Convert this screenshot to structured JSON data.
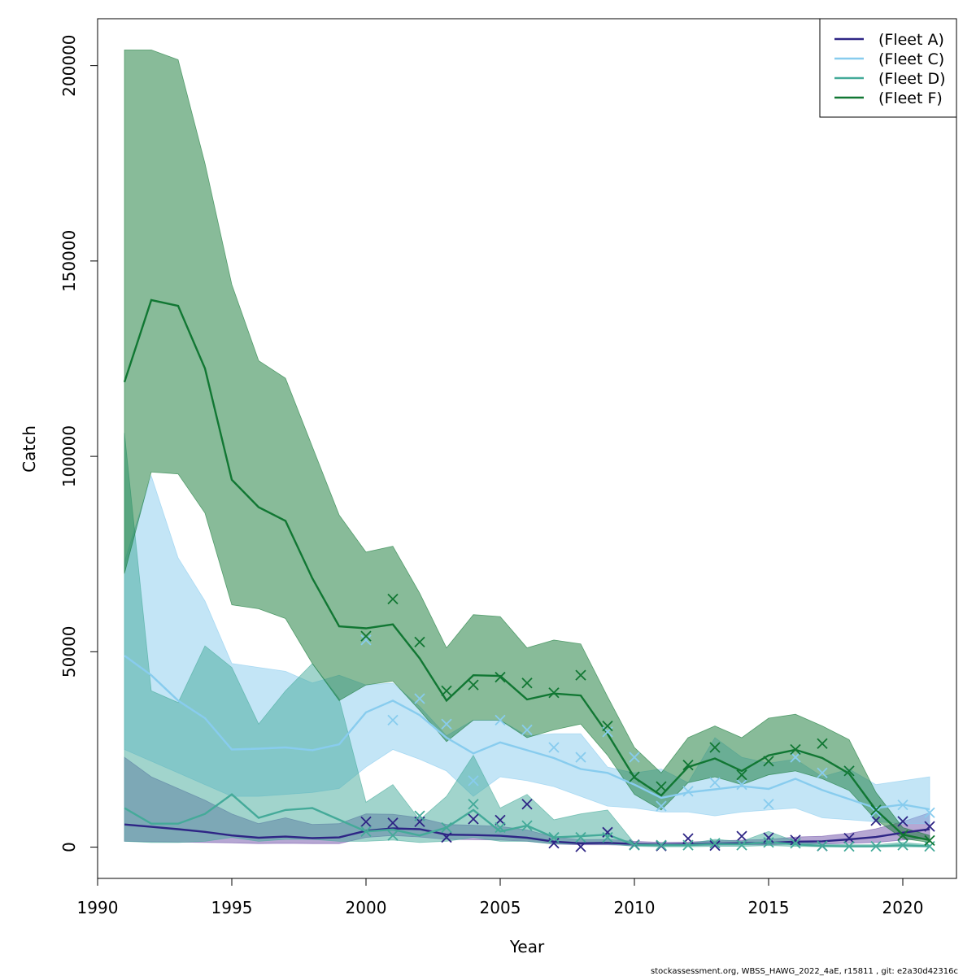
{
  "chart_data": {
    "type": "line",
    "xlabel": "Year",
    "ylabel": "Catch",
    "xlim": [
      1990,
      2022
    ],
    "ylim": [
      -8000,
      212000
    ],
    "x_ticks": [
      1990,
      1995,
      2000,
      2005,
      2010,
      2015,
      2020
    ],
    "y_ticks": [
      0,
      50000,
      100000,
      150000,
      200000
    ],
    "legend_position": "top-right",
    "grid": false,
    "footer": "stockassessment.org, WBSS_HAWG_2022_4aE, r15811 , git: e2a30d42316c",
    "series": [
      {
        "name": "(Fleet A)",
        "color": "#2e2585",
        "band_color": "#6e4fa8",
        "x": [
          1991,
          1992,
          1993,
          1994,
          1995,
          1996,
          1997,
          1998,
          1999,
          2000,
          2001,
          2002,
          2003,
          2004,
          2005,
          2006,
          2007,
          2008,
          2009,
          2010,
          2011,
          2012,
          2013,
          2014,
          2015,
          2016,
          2017,
          2018,
          2019,
          2020,
          2021
        ],
        "fit": [
          5800,
          5200,
          4600,
          3900,
          3000,
          2400,
          2700,
          2300,
          2500,
          4200,
          4800,
          4600,
          3200,
          3100,
          2900,
          2400,
          1400,
          1000,
          1100,
          800,
          600,
          700,
          900,
          1000,
          1100,
          1400,
          1500,
          2000,
          2600,
          3700,
          4600
        ],
        "lower": [
          1500,
          1400,
          1300,
          1200,
          1100,
          900,
          1000,
          900,
          900,
          2500,
          3000,
          2600,
          2000,
          1900,
          1800,
          1500,
          800,
          600,
          600,
          400,
          300,
          400,
          500,
          600,
          600,
          800,
          800,
          1000,
          1200,
          1800,
          2300
        ],
        "upper": [
          23000,
          18000,
          15000,
          12000,
          8500,
          6000,
          7500,
          5800,
          6000,
          8500,
          8400,
          7500,
          5800,
          5600,
          5300,
          4400,
          2600,
          1900,
          2000,
          1500,
          1200,
          1300,
          1600,
          1800,
          2000,
          2600,
          2800,
          3500,
          4700,
          6500,
          8800
        ],
        "obs_x": [
          2000,
          2001,
          2002,
          2003,
          2004,
          2005,
          2006,
          2007,
          2008,
          2009,
          2010,
          2011,
          2012,
          2013,
          2014,
          2015,
          2016,
          2017,
          2018,
          2019,
          2020,
          2021
        ],
        "obs": [
          6500,
          6200,
          6500,
          2500,
          7200,
          6900,
          11000,
          1000,
          100,
          3800,
          600,
          300,
          2200,
          400,
          2800,
          2400,
          1800,
          300,
          2300,
          6800,
          6600,
          5300
        ]
      },
      {
        "name": "(Fleet C)",
        "color": "#88ccee",
        "band_color": "#88ccee",
        "x": [
          1991,
          1992,
          1993,
          1994,
          1995,
          1996,
          1997,
          1998,
          1999,
          2000,
          2001,
          2002,
          2003,
          2004,
          2005,
          2006,
          2007,
          2008,
          2009,
          2010,
          2011,
          2012,
          2013,
          2014,
          2015,
          2016,
          2017,
          2018,
          2019,
          2020,
          2021
        ],
        "fit": [
          49000,
          44000,
          37500,
          33000,
          25000,
          25200,
          25500,
          24800,
          26300,
          34500,
          37500,
          33800,
          28000,
          24000,
          26800,
          24800,
          22800,
          20000,
          19000,
          16000,
          12600,
          14000,
          14800,
          15600,
          14900,
          17500,
          14600,
          12300,
          10000,
          10900,
          9700
        ],
        "lower": [
          25000,
          22000,
          19000,
          16000,
          13000,
          13000,
          13500,
          14000,
          15000,
          20500,
          25000,
          22500,
          19500,
          13000,
          18000,
          17000,
          15500,
          13000,
          10500,
          10000,
          9000,
          9000,
          8000,
          9000,
          9500,
          10000,
          7500,
          7000,
          6500,
          6000,
          6000
        ],
        "upper": [
          73000,
          95000,
          74000,
          63000,
          47000,
          46000,
          45000,
          42000,
          44000,
          41500,
          42000,
          36000,
          28500,
          32500,
          32500,
          28500,
          29000,
          29000,
          20500,
          19000,
          20000,
          16500,
          28000,
          23000,
          21500,
          22500,
          18000,
          20000,
          16000,
          17000,
          18000
        ],
        "obs_x": [
          2000,
          2001,
          2002,
          2003,
          2004,
          2005,
          2006,
          2007,
          2008,
          2009,
          2010,
          2011,
          2012,
          2013,
          2014,
          2015,
          2016,
          2017,
          2018,
          2019,
          2020,
          2021
        ],
        "obs": [
          53000,
          32500,
          38000,
          31500,
          17000,
          32500,
          30000,
          25500,
          23000,
          29500,
          23000,
          10500,
          14300,
          16500,
          16000,
          11000,
          23000,
          19000,
          19500,
          9000,
          10800,
          8800
        ]
      },
      {
        "name": "(Fleet D)",
        "color": "#44aa99",
        "band_color": "#44aa99",
        "x": [
          1991,
          1992,
          1993,
          1994,
          1995,
          1996,
          1997,
          1998,
          1999,
          2000,
          2001,
          2002,
          2003,
          2004,
          2005,
          2006,
          2007,
          2008,
          2009,
          2010,
          2011,
          2012,
          2013,
          2014,
          2015,
          2016,
          2017,
          2018,
          2019,
          2020,
          2021
        ],
        "fit": [
          10000,
          6000,
          6000,
          8500,
          13500,
          7500,
          9500,
          10000,
          7000,
          4000,
          4500,
          3000,
          5000,
          9500,
          4000,
          5500,
          2500,
          2800,
          3200,
          600,
          500,
          500,
          800,
          700,
          1300,
          700,
          300,
          200,
          200,
          500,
          200
        ],
        "lower": [
          1500,
          1200,
          1200,
          1500,
          2500,
          1500,
          2000,
          2000,
          1500,
          1500,
          1800,
          1200,
          1500,
          2500,
          1500,
          1500,
          800,
          800,
          800,
          200,
          100,
          100,
          200,
          200,
          400,
          200,
          100,
          50,
          50,
          100,
          50
        ],
        "upper": [
          106000,
          40000,
          37000,
          51500,
          46000,
          31500,
          40000,
          47000,
          38000,
          11500,
          16000,
          7000,
          13000,
          23500,
          10000,
          13500,
          7000,
          8500,
          9500,
          1000,
          900,
          900,
          2000,
          1500,
          4000,
          1500,
          800,
          600,
          600,
          1200,
          600
        ],
        "obs_x": [
          2000,
          2001,
          2002,
          2003,
          2004,
          2005,
          2006,
          2007,
          2008,
          2009,
          2010,
          2011,
          2012,
          2013,
          2014,
          2015,
          2016,
          2017,
          2018,
          2019,
          2020,
          2021
        ],
        "obs": [
          4000,
          3000,
          8000,
          5000,
          11000,
          5000,
          5500,
          2500,
          2500,
          2500,
          500,
          500,
          500,
          1000,
          500,
          1200,
          1000,
          300,
          200,
          200,
          500,
          200
        ]
      },
      {
        "name": "(Fleet F)",
        "color": "#117733",
        "band_color": "#117733",
        "x": [
          1991,
          1992,
          1993,
          1994,
          1995,
          1996,
          1997,
          1998,
          1999,
          2000,
          2001,
          2002,
          2003,
          2004,
          2005,
          2006,
          2007,
          2008,
          2009,
          2010,
          2011,
          2012,
          2013,
          2014,
          2015,
          2016,
          2017,
          2018,
          2019,
          2020,
          2021
        ],
        "fit": [
          119000,
          140000,
          138500,
          122500,
          94000,
          87000,
          83500,
          68800,
          56500,
          56000,
          57000,
          48300,
          37500,
          44000,
          43800,
          37800,
          39300,
          38800,
          29000,
          17800,
          13200,
          20500,
          22700,
          19500,
          23500,
          24900,
          22800,
          18800,
          9500,
          3200,
          1800
        ],
        "lower": [
          70000,
          96000,
          95500,
          85500,
          62000,
          61000,
          58500,
          47000,
          37500,
          41500,
          42500,
          35000,
          27000,
          32500,
          32500,
          28000,
          30000,
          31500,
          23500,
          13500,
          9500,
          16500,
          18000,
          16000,
          18500,
          19500,
          17500,
          14500,
          7000,
          2200,
          1200
        ],
        "upper": [
          204000,
          204000,
          201500,
          175000,
          144000,
          124500,
          120000,
          102500,
          85000,
          75500,
          77000,
          65000,
          51000,
          59500,
          59000,
          51000,
          53000,
          52000,
          38500,
          25500,
          19000,
          28000,
          31000,
          28000,
          33000,
          34000,
          31000,
          27500,
          14000,
          5000,
          3000
        ],
        "obs_x": [
          2000,
          2001,
          2002,
          2003,
          2004,
          2005,
          2006,
          2007,
          2008,
          2009,
          2010,
          2011,
          2012,
          2013,
          2014,
          2015,
          2016,
          2017,
          2018,
          2019,
          2020,
          2021
        ],
        "obs": [
          54000,
          63500,
          52500,
          40000,
          41500,
          43500,
          42000,
          39500,
          44000,
          31000,
          18000,
          15500,
          21000,
          25500,
          18500,
          22000,
          25000,
          26500,
          19500,
          9500,
          3000,
          1700
        ]
      }
    ]
  }
}
